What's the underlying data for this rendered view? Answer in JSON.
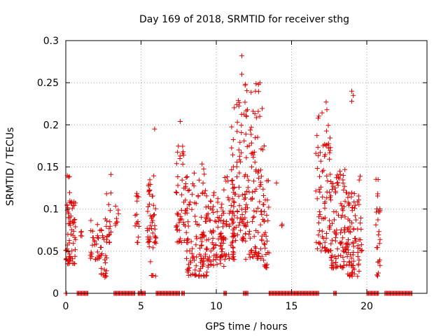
{
  "chart_data": {
    "type": "scatter",
    "title": "Day 169 of 2018, SRMTID for receiver sthg",
    "xlabel": "GPS time / hours",
    "ylabel": "SRMTID / TECUs",
    "xlim": [
      0,
      24
    ],
    "ylim": [
      0,
      0.3
    ],
    "xticks": [
      0,
      5,
      10,
      15,
      20
    ],
    "xtick_labels": [
      "0",
      "5",
      "10",
      "15",
      "20"
    ],
    "yticks": [
      0,
      0.05,
      0.1,
      0.15,
      0.2,
      0.25,
      0.3
    ],
    "ytick_labels": [
      "0",
      "0.05",
      "0.1",
      "0.15",
      "0.2",
      "0.25",
      "0.3"
    ],
    "grid": true,
    "marker": "+",
    "color": "#dd0000",
    "series": [
      {
        "name": "SRMTID",
        "clusters": [
          {
            "x0": 0.0,
            "x1": 0.35,
            "ymin": 0.035,
            "ymax": 0.14,
            "n": 40
          },
          {
            "x0": 0.3,
            "x1": 0.65,
            "ymin": 0.035,
            "ymax": 0.11,
            "n": 30
          },
          {
            "x0": 0.9,
            "x1": 1.2,
            "ymin": 0.068,
            "ymax": 0.075,
            "n": 4
          },
          {
            "x0": 1.6,
            "x1": 2.4,
            "ymin": 0.04,
            "ymax": 0.095,
            "n": 30
          },
          {
            "x0": 2.3,
            "x1": 2.8,
            "ymin": 0.02,
            "ymax": 0.1,
            "n": 25
          },
          {
            "x0": 2.7,
            "x1": 3.0,
            "ymin": 0.06,
            "ymax": 0.125,
            "n": 15
          },
          {
            "x0": 3.3,
            "x1": 3.6,
            "ymin": 0.08,
            "ymax": 0.11,
            "n": 8
          },
          {
            "x0": 4.6,
            "x1": 4.9,
            "ymin": 0.06,
            "ymax": 0.13,
            "n": 15
          },
          {
            "x0": 5.4,
            "x1": 6.0,
            "ymin": 0.06,
            "ymax": 0.14,
            "n": 45
          },
          {
            "x0": 5.5,
            "x1": 6.0,
            "ymin": 0.02,
            "ymax": 0.06,
            "n": 8
          },
          {
            "x0": 7.3,
            "x1": 8.2,
            "ymin": 0.06,
            "ymax": 0.175,
            "n": 60
          },
          {
            "x0": 8.0,
            "x1": 9.4,
            "ymin": 0.02,
            "ymax": 0.16,
            "n": 90
          },
          {
            "x0": 9.0,
            "x1": 10.3,
            "ymin": 0.03,
            "ymax": 0.12,
            "n": 80
          },
          {
            "x0": 10.3,
            "x1": 11.2,
            "ymin": 0.04,
            "ymax": 0.14,
            "n": 70
          },
          {
            "x0": 11.0,
            "x1": 12.0,
            "ymin": 0.06,
            "ymax": 0.23,
            "n": 90
          },
          {
            "x0": 11.9,
            "x1": 13.2,
            "ymin": 0.04,
            "ymax": 0.25,
            "n": 110
          },
          {
            "x0": 13.0,
            "x1": 13.5,
            "ymin": 0.03,
            "ymax": 0.14,
            "n": 30
          },
          {
            "x0": 14.2,
            "x1": 14.4,
            "ymin": 0.08,
            "ymax": 0.085,
            "n": 3
          },
          {
            "x0": 16.6,
            "x1": 17.6,
            "ymin": 0.05,
            "ymax": 0.22,
            "n": 80
          },
          {
            "x0": 17.6,
            "x1": 18.6,
            "ymin": 0.03,
            "ymax": 0.15,
            "n": 90
          },
          {
            "x0": 18.6,
            "x1": 19.5,
            "ymin": 0.02,
            "ymax": 0.12,
            "n": 80
          },
          {
            "x0": 19.4,
            "x1": 19.7,
            "ymin": 0.05,
            "ymax": 0.18,
            "n": 15
          },
          {
            "x0": 20.6,
            "x1": 20.9,
            "ymin": 0.02,
            "ymax": 0.14,
            "n": 25
          }
        ],
        "highlights": [
          {
            "x": 11.7,
            "y": 0.282
          },
          {
            "x": 11.7,
            "y": 0.26
          },
          {
            "x": 12.8,
            "y": 0.248
          },
          {
            "x": 12.9,
            "y": 0.25
          },
          {
            "x": 12.6,
            "y": 0.24
          },
          {
            "x": 19.0,
            "y": 0.24
          },
          {
            "x": 19.1,
            "y": 0.235
          },
          {
            "x": 17.3,
            "y": 0.227
          },
          {
            "x": 17.35,
            "y": 0.218
          },
          {
            "x": 19.0,
            "y": 0.228
          },
          {
            "x": 7.6,
            "y": 0.204
          },
          {
            "x": 5.9,
            "y": 0.195
          },
          {
            "x": 3.0,
            "y": 0.141
          },
          {
            "x": 14.0,
            "y": 0.131
          },
          {
            "x": 10.5,
            "y": 0.032
          },
          {
            "x": 2.6,
            "y": 0.019
          }
        ],
        "zero_ranges": [
          [
            0.0,
            0.1
          ],
          [
            0.75,
            1.5
          ],
          [
            3.2,
            4.6
          ],
          [
            4.8,
            5.3
          ],
          [
            6.0,
            7.6
          ],
          [
            7.7,
            7.9
          ],
          [
            10.5,
            10.7
          ],
          [
            11.8,
            12.1
          ],
          [
            13.5,
            16.8
          ],
          [
            17.8,
            18.0
          ],
          [
            20.0,
            20.8
          ],
          [
            21.2,
            23.0
          ]
        ]
      }
    ]
  }
}
